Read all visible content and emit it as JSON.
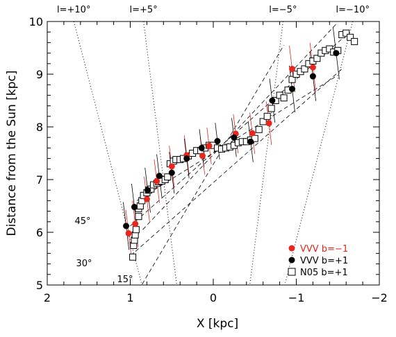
{
  "chart_data": {
    "type": "scatter",
    "xlabel": "X [kpc]",
    "ylabel": "Distance from the Sun [kpc]",
    "xlim": [
      2,
      -2
    ],
    "ylim": [
      5,
      10
    ],
    "xticks": [
      "2",
      "1",
      "0",
      "−1",
      "−2"
    ],
    "yticks": [
      "5",
      "6",
      "7",
      "8",
      "9",
      "10"
    ],
    "grid": false,
    "legend_position": "bottom-right",
    "top_labels": [
      {
        "text": "l=+10°",
        "x": 1.68
      },
      {
        "text": "l=+5°",
        "x": 0.84
      },
      {
        "text": "l=−5°",
        "x": -0.84
      },
      {
        "text": "l=−10°",
        "x": -1.68
      }
    ],
    "sightlines": [
      {
        "l": 10,
        "x_top": 1.68,
        "x_bottom": 0.86
      },
      {
        "l": 5,
        "x_top": 0.84,
        "x_bottom": 0.44
      },
      {
        "l": -5,
        "x_top": -0.84,
        "x_bottom": -0.44
      },
      {
        "l": -10,
        "x_top": -1.68,
        "x_bottom": -0.86
      }
    ],
    "bar_angle_lines": [
      {
        "label": "45°",
        "x1": 1.0,
        "y1": 6.12,
        "x2": -1.55,
        "y2": 9.67
      },
      {
        "label": "30°",
        "x1": 1.0,
        "y1": 5.55,
        "x2": -1.55,
        "y2": 9.1
      },
      {
        "label": "15°",
        "x1": 0.9,
        "y1": 4.9,
        "x2": -0.85,
        "y2": 9.55
      },
      {
        "label": "",
        "x1": 0.92,
        "y1": 6.6,
        "x2": -1.5,
        "y2": 8.98
      },
      {
        "label": "",
        "x1": 0.85,
        "y1": 6.05,
        "x2": -1.48,
        "y2": 9.95
      }
    ],
    "series": [
      {
        "name": "VVV b=−1",
        "color": "#e8261e",
        "marker": "filled-circle",
        "x": [
          1.02,
          0.94,
          0.8,
          0.68,
          0.5,
          0.32,
          0.13,
          0.05,
          -0.27,
          -0.47,
          -0.67,
          -0.95,
          -1.2
        ],
        "y": [
          5.98,
          6.16,
          6.63,
          6.97,
          7.25,
          7.46,
          7.45,
          7.64,
          7.87,
          7.88,
          8.07,
          9.1,
          9.13
        ]
      },
      {
        "name": "VVV b=+1",
        "color": "#000000",
        "marker": "filled-circle",
        "x": [
          1.05,
          0.95,
          0.79,
          0.65,
          0.5,
          0.32,
          0.14,
          -0.05,
          -0.25,
          -0.45,
          -0.71,
          -0.95,
          -1.2,
          -1.48
        ],
        "y": [
          6.12,
          6.48,
          6.8,
          7.07,
          7.13,
          7.4,
          7.6,
          7.73,
          7.8,
          7.72,
          8.5,
          8.72,
          8.96,
          9.4
        ]
      },
      {
        "name": "N05 b=+1",
        "color": "#000000",
        "marker": "open-square",
        "x": [
          0.97,
          0.96,
          0.95,
          0.94,
          0.93,
          0.9,
          0.9,
          0.88,
          0.86,
          0.84,
          0.8,
          0.78,
          0.75,
          0.72,
          0.68,
          0.66,
          0.62,
          0.58,
          0.55,
          0.52,
          0.48,
          0.45,
          0.4,
          0.36,
          0.3,
          0.25,
          0.2,
          0.15,
          0.1,
          0.05,
          0.0,
          -0.05,
          -0.1,
          -0.15,
          -0.2,
          -0.25,
          -0.3,
          -0.35,
          -0.4,
          -0.45,
          -0.5,
          -0.55,
          -0.6,
          -0.65,
          -0.7,
          -0.75,
          -0.8,
          -0.85,
          -0.9,
          -0.95,
          -1.0,
          -1.05,
          -1.1,
          -1.15,
          -1.2,
          -1.25,
          -1.3,
          -1.35,
          -1.4,
          -1.45,
          -1.5,
          -1.55,
          -1.6,
          -1.65,
          -1.7
        ],
        "y": [
          5.53,
          5.75,
          5.85,
          5.95,
          6.05,
          6.3,
          6.45,
          6.5,
          6.6,
          6.7,
          6.75,
          6.8,
          6.82,
          6.9,
          6.93,
          6.96,
          6.97,
          7.0,
          7.05,
          7.3,
          7.35,
          7.38,
          7.38,
          7.4,
          7.45,
          7.5,
          7.55,
          7.55,
          7.6,
          7.65,
          7.65,
          7.6,
          7.58,
          7.6,
          7.62,
          7.65,
          7.7,
          7.72,
          7.72,
          7.75,
          7.78,
          7.95,
          8.1,
          8.2,
          8.35,
          8.5,
          8.6,
          8.55,
          8.7,
          8.9,
          9.0,
          9.05,
          9.1,
          9.2,
          9.25,
          9.3,
          9.4,
          9.45,
          9.48,
          9.42,
          9.45,
          9.75,
          9.78,
          9.7,
          9.62
        ]
      }
    ]
  }
}
